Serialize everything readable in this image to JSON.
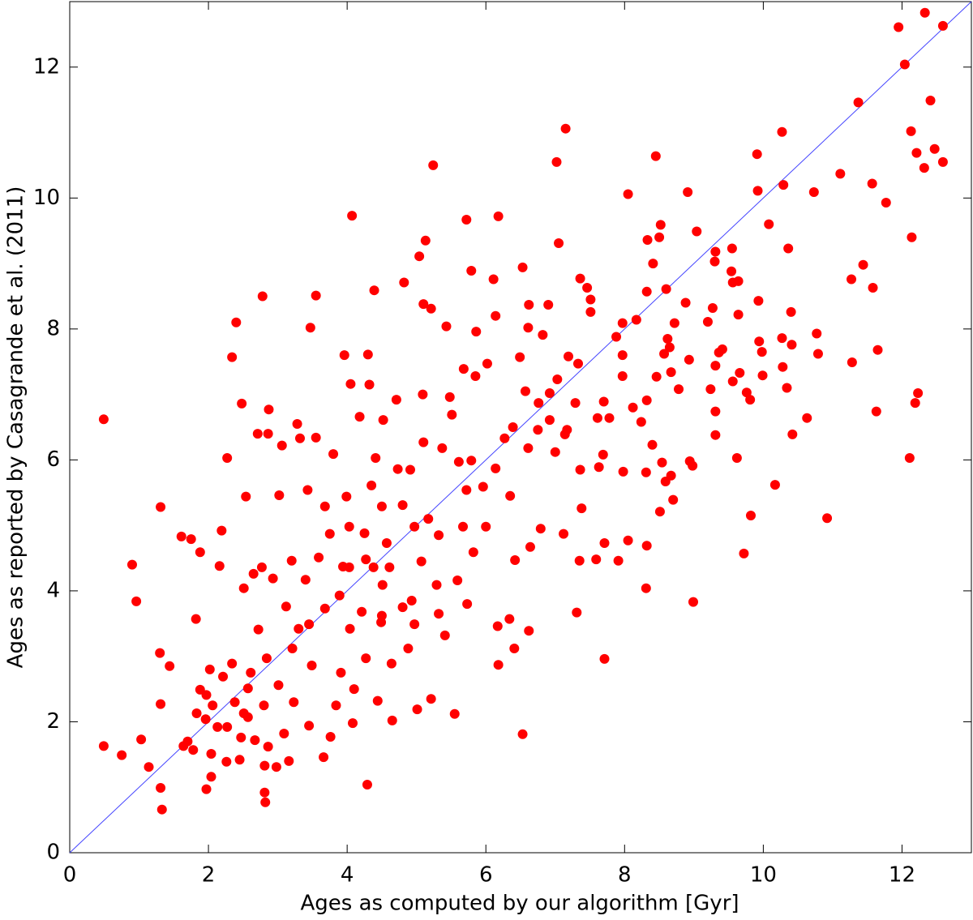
{
  "chart_data": {
    "type": "scatter",
    "xlabel": "Ages as computed by our algorithm [Gyr]",
    "ylabel": "Ages as reported by Casagrande et al. (2011)",
    "xlim": [
      0,
      13
    ],
    "ylim": [
      0,
      13
    ],
    "xticks": [
      0,
      2,
      4,
      6,
      8,
      10,
      12
    ],
    "yticks": [
      0,
      2,
      4,
      6,
      8,
      10,
      12
    ],
    "grid": false,
    "color": "#ff0000",
    "identity_line_color": "#4444ff",
    "x": [
      0.49,
      0.49,
      0.9,
      0.96,
      0.75,
      1.03,
      1.14,
      1.31,
      1.3,
      1.31,
      1.31,
      1.33,
      1.44,
      1.61,
      1.75,
      1.82,
      1.88,
      1.97,
      1.97,
      2.16,
      2.19,
      2.27,
      2.34,
      2.4,
      2.48,
      2.54,
      2.78,
      2.82,
      2.81,
      3.47,
      3.55,
      4.07,
      3.96,
      4.3,
      4.39,
      4.29,
      4.82,
      5.24,
      5.13,
      5.04,
      5.1,
      5.72,
      5.79,
      6.11,
      6.18,
      6.14,
      6.53,
      6.53,
      7.02,
      7.15,
      7.05,
      7.31,
      7.71,
      8.05,
      8.45,
      8.91,
      9.04,
      9.91,
      10.27,
      11.37,
      11.11,
      11.95,
      12.33,
      12.04,
      12.59,
      12.41,
      12.13,
      12.21,
      12.32,
      12.47,
      12.59,
      12.14,
      12.11,
      12.23,
      12.19,
      11.65,
      11.63,
      11.77,
      11.57,
      11.44,
      11.27,
      11.28,
      11.58,
      10.92,
      10.79,
      10.77,
      10.73,
      10.63,
      10.42,
      10.4,
      10.41,
      10.34,
      10.36,
      10.29,
      10.27,
      10.28,
      10.17,
      10.08,
      9.98,
      9.99,
      9.94,
      9.93,
      9.92,
      9.81,
      9.82,
      9.76,
      9.72,
      9.64,
      9.64,
      9.66,
      9.56,
      9.56,
      9.55,
      9.54,
      9.62,
      9.41,
      9.36,
      9.31,
      9.3,
      9.27,
      9.31,
      9.31,
      9.31,
      9.24,
      9.2,
      8.94,
      8.98,
      8.99,
      8.93,
      8.88,
      8.78,
      8.72,
      8.67,
      8.7,
      8.67,
      8.59,
      8.54,
      8.51,
      8.5,
      8.52,
      8.57,
      8.65,
      8.62,
      8.6,
      8.41,
      8.33,
      8.32,
      8.31,
      8.32,
      8.31,
      8.4,
      8.32,
      8.46,
      8.17,
      8.24,
      8.12,
      8.05,
      7.97,
      7.97,
      7.97,
      7.98,
      7.88,
      7.91,
      7.78,
      7.7,
      7.69,
      7.71,
      7.61,
      7.59,
      7.63,
      7.51,
      7.51,
      7.46,
      7.36,
      7.35,
      7.33,
      7.29,
      7.36,
      7.38,
      7.19,
      7.17,
      7.14,
      7.12,
      7.03,
      7.0,
      6.92,
      6.92,
      6.9,
      6.82,
      6.76,
      6.75,
      6.79,
      6.64,
      6.62,
      6.62,
      6.61,
      6.61,
      6.57,
      6.49,
      6.42,
      6.39,
      6.41,
      6.35,
      6.34,
      6.27,
      6.18,
      6.17,
      6.14,
      6.02,
      6.0,
      5.96,
      5.86,
      5.85,
      5.82,
      5.79,
      5.72,
      5.68,
      5.73,
      5.67,
      5.59,
      5.55,
      5.51,
      5.48,
      5.43,
      5.41,
      5.37,
      5.32,
      5.29,
      5.21,
      5.21,
      5.17,
      5.1,
      5.09,
      5.07,
      5.01,
      4.93,
      4.88,
      4.8,
      4.8,
      4.73,
      4.71,
      4.65,
      4.64,
      4.57,
      4.52,
      4.51,
      4.49,
      4.44,
      4.41,
      4.35,
      4.32,
      4.27,
      4.27,
      4.25,
      4.18,
      4.1,
      4.08,
      4.05,
      4.04,
      3.99,
      3.94,
      3.89,
      3.84,
      3.8,
      3.76,
      3.75,
      3.68,
      3.66,
      3.59,
      3.55,
      3.49,
      3.43,
      3.4,
      3.32,
      3.3,
      3.28,
      3.23,
      3.2,
      3.16,
      3.12,
      3.06,
      3.02,
      3.01,
      2.98,
      2.93,
      2.87,
      2.86,
      2.84,
      2.77,
      2.72,
      2.71,
      2.67,
      2.65,
      2.61,
      2.57,
      2.51,
      2.47,
      2.45,
      2.38,
      2.34,
      2.26,
      2.21,
      2.13,
      2.06,
      2.02,
      1.96,
      1.88,
      1.83,
      1.78,
      1.7,
      1.64,
      2.04,
      2.27,
      2.51,
      2.57,
      3.09,
      3.45,
      2.04,
      2.86,
      2.81,
      2.8,
      3.91,
      4.21,
      4.5,
      4.97,
      5.32,
      4.38,
      3.68,
      4.03,
      4.91,
      5.61,
      4.97,
      3.21,
      3.45,
      4.5,
      4.03,
      4.61
    ],
    "values": [
      6.62,
      1.63,
      4.4,
      3.84,
      1.49,
      1.73,
      1.31,
      5.28,
      3.05,
      2.27,
      0.99,
      0.66,
      2.85,
      4.83,
      4.79,
      3.57,
      4.59,
      2.41,
      0.97,
      4.38,
      4.92,
      6.03,
      7.57,
      8.1,
      6.86,
      5.44,
      8.5,
      0.77,
      0.92,
      8.02,
      8.51,
      9.73,
      7.6,
      7.61,
      8.59,
      1.04,
      8.71,
      10.5,
      9.35,
      9.11,
      8.38,
      9.67,
      8.89,
      8.76,
      9.72,
      8.2,
      8.94,
      1.81,
      10.55,
      11.06,
      9.31,
      3.67,
      2.96,
      10.06,
      10.64,
      10.09,
      9.49,
      10.67,
      11.01,
      11.46,
      10.37,
      12.61,
      12.83,
      12.04,
      12.63,
      11.49,
      11.02,
      10.69,
      10.46,
      10.75,
      10.55,
      9.4,
      6.03,
      7.02,
      6.87,
      7.68,
      6.74,
      9.93,
      10.22,
      8.98,
      8.76,
      7.49,
      8.63,
      5.11,
      7.62,
      7.93,
      10.09,
      6.64,
      6.39,
      8.26,
      7.76,
      7.1,
      9.23,
      10.2,
      7.86,
      7.42,
      5.62,
      9.6,
      7.65,
      7.29,
      7.81,
      8.43,
      10.11,
      6.92,
      5.15,
      7.03,
      4.57,
      8.22,
      8.73,
      7.33,
      7.2,
      8.71,
      9.23,
      8.88,
      6.03,
      7.69,
      7.64,
      9.18,
      9.03,
      8.32,
      7.44,
      6.74,
      6.38,
      7.08,
      8.11,
      5.98,
      5.91,
      3.83,
      7.53,
      8.4,
      7.08,
      8.09,
      7.34,
      5.39,
      5.76,
      5.67,
      5.96,
      5.21,
      9.4,
      9.59,
      7.62,
      7.72,
      7.85,
      8.61,
      9.0,
      9.36,
      8.57,
      4.04,
      4.69,
      5.81,
      6.23,
      6.91,
      7.27,
      8.14,
      6.58,
      6.8,
      4.77,
      7.6,
      8.09,
      7.28,
      5.82,
      7.88,
      4.46,
      6.64,
      6.89,
      6.08,
      4.73,
      6.64,
      4.48,
      5.89,
      8.45,
      8.26,
      8.63,
      8.77,
      4.46,
      7.47,
      6.87,
      5.85,
      5.26,
      7.58,
      6.46,
      6.39,
      4.87,
      7.23,
      6.12,
      7.02,
      6.61,
      8.37,
      7.91,
      6.87,
      6.46,
      4.95,
      4.67,
      8.37,
      3.39,
      8.02,
      6.18,
      7.05,
      7.57,
      4.47,
      6.5,
      3.12,
      5.45,
      3.57,
      6.33,
      2.87,
      3.46,
      5.87,
      7.47,
      4.98,
      5.59,
      7.96,
      7.28,
      4.59,
      5.99,
      5.54,
      7.39,
      3.8,
      4.98,
      4.16,
      2.12,
      6.69,
      6.96,
      8.04,
      3.32,
      6.18,
      3.65,
      4.09,
      2.35,
      8.31,
      5.1,
      6.27,
      7.0,
      4.45,
      2.19,
      3.85,
      3.12,
      5.31,
      3.75,
      5.86,
      6.92,
      2.02,
      2.89,
      4.73,
      6.61,
      4.09,
      3.52,
      2.32,
      6.03,
      5.61,
      7.15,
      4.48,
      2.97,
      4.88,
      6.66,
      2.5,
      1.98,
      7.16,
      3.42,
      5.44,
      4.37,
      3.93,
      2.25,
      6.09,
      1.77,
      4.87,
      3.73,
      1.46,
      4.51,
      6.34,
      2.86,
      5.54,
      4.17,
      6.33,
      3.42,
      6.55,
      2.3,
      4.46,
      1.4,
      3.76,
      6.22,
      5.46,
      2.56,
      1.31,
      4.19,
      6.77,
      6.4,
      2.97,
      4.36,
      3.41,
      6.4,
      1.72,
      4.26,
      2.75,
      2.51,
      4.04,
      1.76,
      1.42,
      2.3,
      2.89,
      1.39,
      2.69,
      1.92,
      2.25,
      2.8,
      2.04,
      2.49,
      2.13,
      1.57,
      1.7,
      1.63,
      1.51,
      1.92,
      2.13,
      2.07,
      1.82,
      1.94,
      1.16,
      1.62,
      1.33,
      2.25,
      2.75,
      3.68,
      5.29,
      4.98,
      4.85,
      4.36,
      5.29,
      4.98,
      5.85,
      5.97,
      3.49,
      3.12,
      3.49,
      3.62,
      4.36,
      4.36
    ]
  }
}
